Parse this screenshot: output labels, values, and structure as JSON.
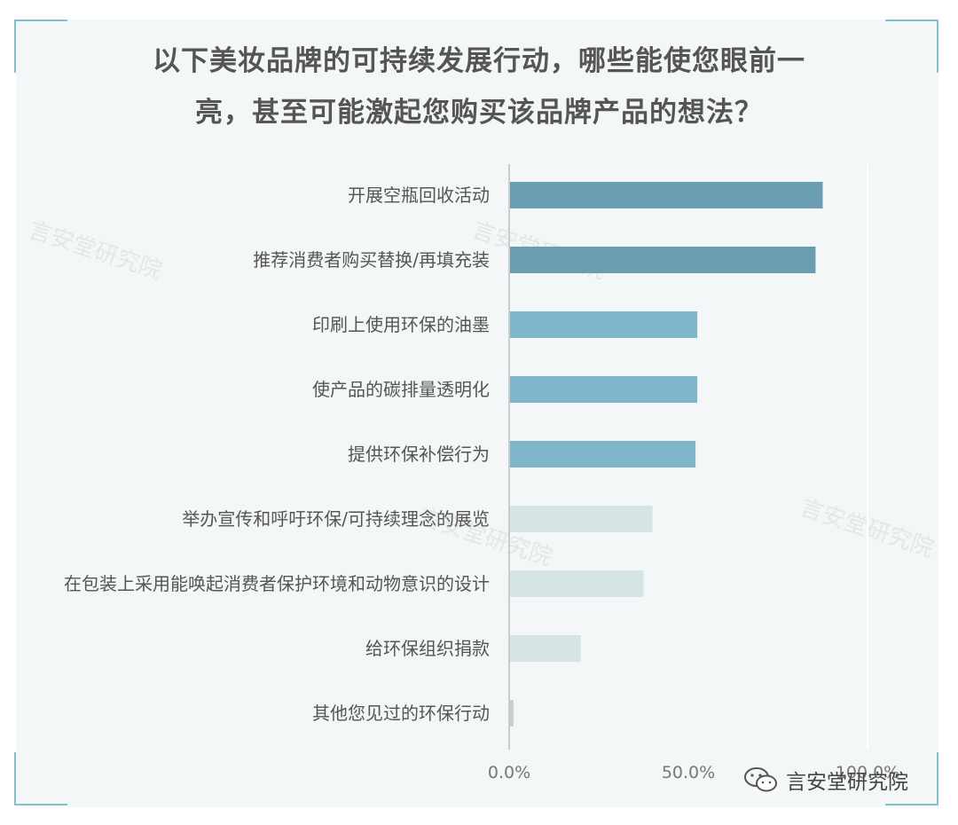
{
  "title_lines": [
    "以下美妆品牌的可持续发展行动，哪些能使您眼前一",
    "亮，甚至可能激起您购买该品牌产品的想法？"
  ],
  "watermark_text": "言安堂研究院",
  "footer": {
    "brand": "言安堂研究院",
    "icon": "wechat-icon"
  },
  "colors": {
    "bar_dark": "#6a9db2",
    "bar_medium": "#7fb6cc",
    "bar_light": "#d7e4e5",
    "bar_gray": "#cccccc",
    "axis": "#cccccc",
    "label": "#555555",
    "panel": "#f4f7f7",
    "frame_corner": "#86c0cc"
  },
  "chart_data": {
    "type": "bar",
    "orientation": "horizontal",
    "categories": [
      "开展空瓶回收活动",
      "推荐消费者购买替换/再填充装",
      "印刷上使用环保的油墨",
      "使产品的碳排量透明化",
      "提供环保补偿行为",
      "举办宣传和呼吁环保/可持续理念的展览",
      "在包装上采用能唤起消费者保护环境和动物意识的设计",
      "给环保组织捐款",
      "其他您见过的环保行动"
    ],
    "values": [
      87.5,
      85.5,
      52.5,
      52.5,
      52.0,
      40.0,
      37.5,
      20.0,
      1.2
    ],
    "value_unit": "%",
    "color_groups": [
      "dark",
      "dark",
      "medium",
      "medium",
      "medium",
      "light",
      "light",
      "light",
      "gray"
    ],
    "xlim": [
      0,
      100
    ],
    "xticks": [
      0,
      50,
      100
    ],
    "xtick_labels": [
      "0.0%",
      "50.0%",
      "100.0%"
    ],
    "grid": "vertical line at 100%",
    "legend": "none"
  }
}
